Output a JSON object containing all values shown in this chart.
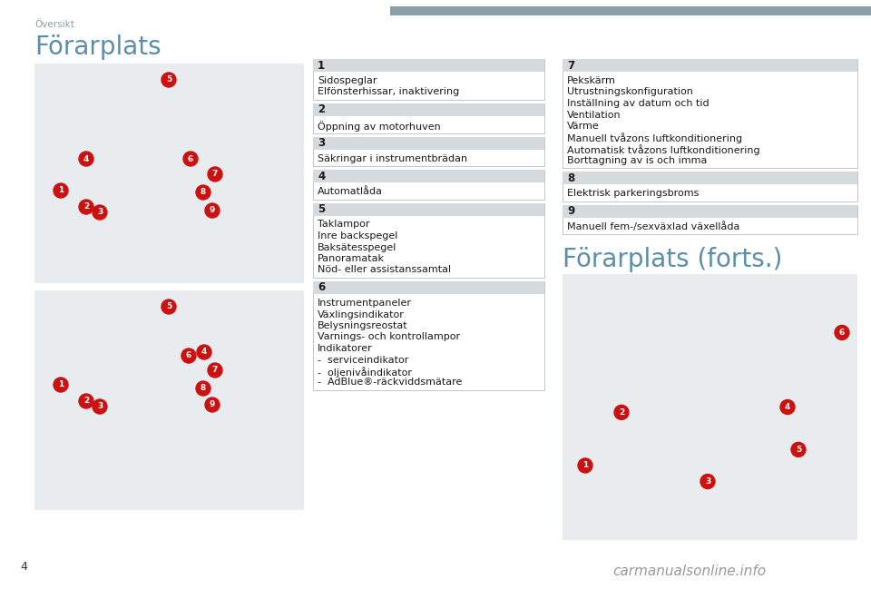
{
  "page_num": "4",
  "header_text": "Översikt",
  "header_bar_color": "#8a9faa",
  "bg_color": "#ffffff",
  "title_left": "Förarplats",
  "title_right": "Förarplats (forts.)",
  "title_color": "#5b8fa8",
  "title_fontsize": 20,
  "section_header_bg": "#d4dadd",
  "section_header_fontsize": 8.5,
  "section_body_fontsize": 8.0,
  "sections_left": [
    {
      "num": "1",
      "lines": [
        "Sidospeglar",
        "Elfönsterhissar, inaktivering"
      ]
    },
    {
      "num": "2",
      "lines": [
        "Öppning av motorhuven"
      ]
    },
    {
      "num": "3",
      "lines": [
        "Säkringar i instrumentbrädan"
      ]
    },
    {
      "num": "4",
      "lines": [
        "Automatlåda"
      ]
    },
    {
      "num": "5",
      "lines": [
        "Taklampor",
        "Inre backspegel",
        "Baksätesspegel",
        "Panoramatak",
        "Nöd- eller assistanssamtal"
      ]
    },
    {
      "num": "6",
      "lines": [
        "Instrumentpaneler",
        "Växlingsindikator",
        "Belysningsreostat",
        "Varnings- och kontrollampor",
        "Indikatorer",
        "-  serviceindikator",
        "-  oljenivåindikator",
        "-  AdBlue®-räckviddsmätare"
      ]
    }
  ],
  "sections_right": [
    {
      "num": "7",
      "lines": [
        "Pekskärm",
        "Utrustningskonfiguration",
        "Inställning av datum och tid",
        "Ventilation",
        "Värme",
        "Manuell tvåzons luftkonditionering",
        "Automatisk tvåzons luftkonditionering",
        "Borttagning av is och imma"
      ]
    },
    {
      "num": "8",
      "lines": [
        "Elektrisk parkeringsbroms"
      ]
    },
    {
      "num": "9",
      "lines": [
        "Manuell fem-/sexväxlad växellåda"
      ]
    }
  ],
  "img_bg": "#e8ecee",
  "badge_color": "#cc1111",
  "watermark": "carmanualsonline.info",
  "watermark_color": "#999999",
  "watermark_fontsize": 11
}
